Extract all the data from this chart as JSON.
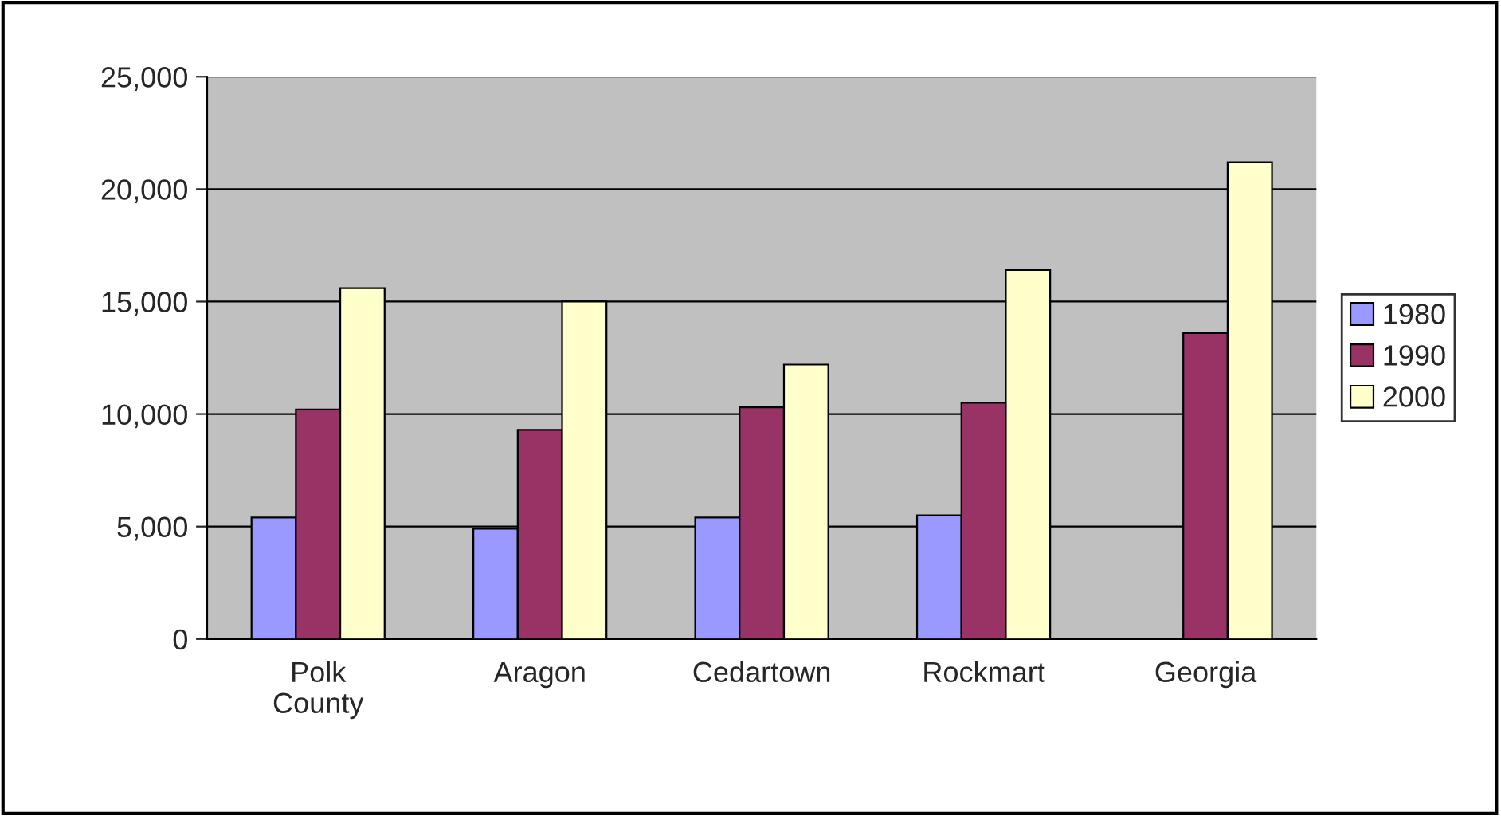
{
  "chart_data": {
    "type": "bar",
    "categories": [
      "Polk\nCounty",
      "Aragon",
      "Cedartown",
      "Rockmart",
      "Georgia"
    ],
    "series": [
      {
        "name": "1980",
        "color": "#9999ff",
        "values": [
          5400,
          4900,
          5400,
          5500,
          null
        ]
      },
      {
        "name": "1990",
        "color": "#993366",
        "values": [
          10200,
          9300,
          10300,
          10500,
          13600
        ]
      },
      {
        "name": "2000",
        "color": "#ffffcc",
        "values": [
          15600,
          15000,
          12200,
          16400,
          21200
        ]
      }
    ],
    "ylim": [
      0,
      25000
    ],
    "yticks": [
      {
        "value": 0,
        "label": "0"
      },
      {
        "value": 5000,
        "label": "5,000"
      },
      {
        "value": 10000,
        "label": "10,000"
      },
      {
        "value": 15000,
        "label": "15,000"
      },
      {
        "value": 20000,
        "label": "20,000"
      },
      {
        "value": 25000,
        "label": "25,000"
      }
    ],
    "grid": "y",
    "legend": "right"
  }
}
